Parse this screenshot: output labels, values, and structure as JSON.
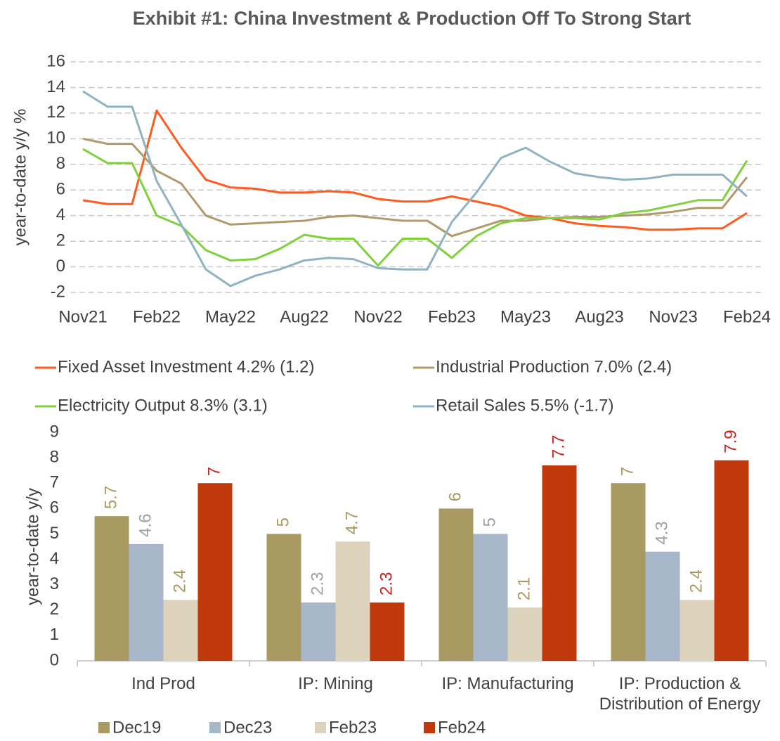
{
  "title": "Exhibit #1: China Investment & Production Off To Strong Start",
  "chart_data": [
    {
      "type": "line",
      "ylabel": "year-to-date y/y %",
      "categories": [
        "Nov21",
        null,
        null,
        "Feb22",
        null,
        null,
        "May22",
        null,
        null,
        "Aug22",
        null,
        null,
        "Nov22",
        null,
        null,
        "Feb23",
        null,
        null,
        "May23",
        null,
        null,
        "Aug23",
        null,
        null,
        "Nov23",
        null,
        null,
        "Feb24"
      ],
      "series": [
        {
          "name": "Fixed Asset Investment 4.2% (1.2)",
          "color": "#ff5a1f",
          "values": [
            5.2,
            4.9,
            4.9,
            12.2,
            9.3,
            6.8,
            6.2,
            6.1,
            5.8,
            5.8,
            5.9,
            5.8,
            5.3,
            5.1,
            5.1,
            5.5,
            5.1,
            4.7,
            4.0,
            3.8,
            3.4,
            3.2,
            3.1,
            2.9,
            2.9,
            3.0,
            3.0,
            4.2
          ]
        },
        {
          "name": "Industrial Production 7.0% (2.4)",
          "color": "#b09a6b",
          "values": [
            10.0,
            9.6,
            9.6,
            7.5,
            6.5,
            4.0,
            3.3,
            3.4,
            3.5,
            3.6,
            3.9,
            4.0,
            3.8,
            3.6,
            3.6,
            2.4,
            3.0,
            3.6,
            3.6,
            3.8,
            3.9,
            3.9,
            4.0,
            4.1,
            4.3,
            4.6,
            4.6,
            7.0
          ]
        },
        {
          "name": "Electricity Output 8.3% (3.1)",
          "color": "#7fd13b",
          "values": [
            9.2,
            8.1,
            8.1,
            4.0,
            3.2,
            1.3,
            0.5,
            0.6,
            1.4,
            2.5,
            2.2,
            2.2,
            0.1,
            2.2,
            2.2,
            0.7,
            2.4,
            3.4,
            3.8,
            3.8,
            3.8,
            3.7,
            4.2,
            4.4,
            4.8,
            5.2,
            5.2,
            8.3
          ]
        },
        {
          "name": "Retail Sales 5.5% (-1.7)",
          "color": "#8fb3c0",
          "values": [
            13.7,
            12.5,
            12.5,
            6.7,
            3.3,
            -0.2,
            -1.5,
            -0.7,
            -0.2,
            0.5,
            0.7,
            0.6,
            -0.1,
            -0.2,
            -0.2,
            3.5,
            5.8,
            8.5,
            9.3,
            8.2,
            7.3,
            7.0,
            6.8,
            6.9,
            7.2,
            7.2,
            7.2,
            5.5
          ]
        }
      ],
      "ylim": [
        -2,
        16
      ],
      "yticks": [
        -2,
        0,
        2,
        4,
        6,
        8,
        10,
        12,
        14,
        16
      ],
      "grid": true
    },
    {
      "type": "bar",
      "ylabel": "year-to-date y/y",
      "categories": [
        "Ind Prod",
        "IP: Mining",
        "IP: Manufacturing",
        "IP: Production & Distribution of Energy"
      ],
      "series": [
        {
          "name": "Dec19",
          "color": "#a99a62",
          "label_color": "#a99a62",
          "values": [
            5.7,
            5,
            6,
            7
          ]
        },
        {
          "name": "Dec23",
          "color": "#a7b6c9",
          "label_color": "#a0a0a0",
          "values": [
            4.6,
            2.3,
            5,
            4.3
          ]
        },
        {
          "name": "Feb23",
          "color": "#ddd3bc",
          "label_color": "#a99a62",
          "values": [
            2.4,
            4.7,
            2.1,
            2.4
          ]
        },
        {
          "name": "Feb24",
          "color": "#c0390b",
          "label_color": "#d0201a",
          "values": [
            7,
            2.3,
            7.7,
            7.9
          ]
        }
      ],
      "ylim": [
        0,
        9
      ],
      "yticks": [
        0,
        1,
        2,
        3,
        4,
        5,
        6,
        7,
        8,
        9
      ],
      "grid": false
    }
  ]
}
